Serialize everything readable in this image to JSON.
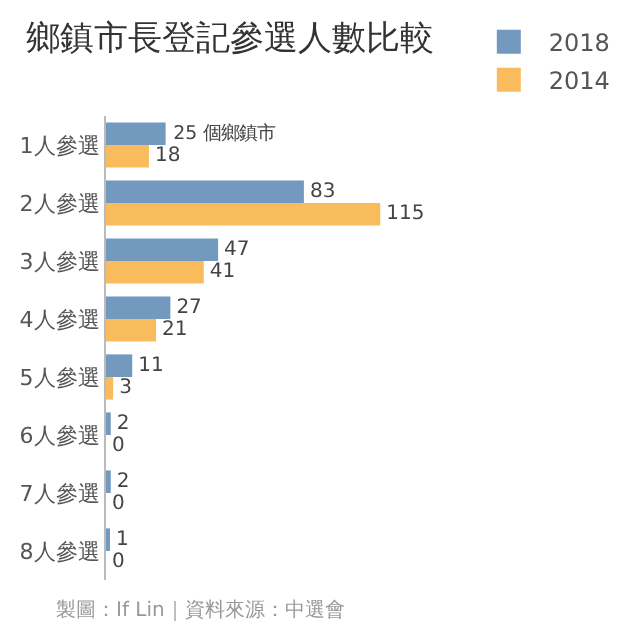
{
  "chart_data": {
    "type": "bar",
    "orientation": "horizontal",
    "title": "鄉鎮市長登記參選人數比較",
    "categories": [
      "1人參選",
      "2人參選",
      "3人參選",
      "4人參選",
      "5人參選",
      "6人參選",
      "7人參選",
      "8人參選"
    ],
    "series": [
      {
        "name": "2018",
        "color": "#7399bf",
        "values": [
          25,
          83,
          47,
          27,
          11,
          2,
          2,
          1
        ],
        "value_labels": [
          "25 個鄉鎮市",
          "83",
          "47",
          "27",
          "11",
          "2",
          "2",
          "1"
        ]
      },
      {
        "name": "2014",
        "color": "#f9bc5c",
        "values": [
          18,
          115,
          41,
          21,
          3,
          0,
          0,
          0
        ],
        "value_labels": [
          "18",
          "115",
          "41",
          "21",
          "3",
          "0",
          "0",
          "0"
        ]
      }
    ],
    "legend": "top right",
    "tick_labels": "y",
    "annotations": [
      "製圖：If Lin｜資料來源：中選會"
    ]
  }
}
